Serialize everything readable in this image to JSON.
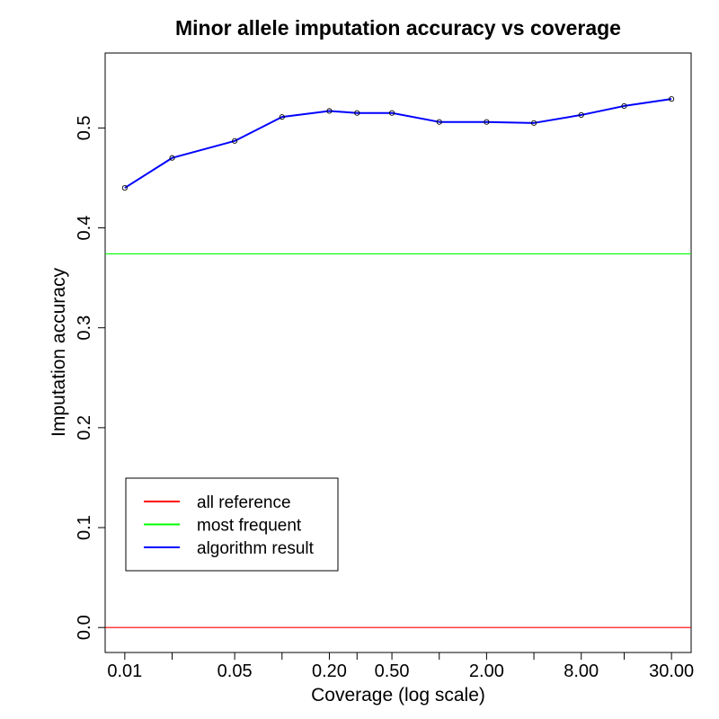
{
  "chart_data": {
    "type": "line",
    "title": "Minor allele imputation accuracy vs coverage",
    "xlabel": "Coverage (log scale)",
    "ylabel": "Imputation accuracy",
    "x_scale": "log",
    "x": [
      0.01,
      0.02,
      0.05,
      0.1,
      0.2,
      0.3,
      0.5,
      1,
      2,
      4,
      8,
      15,
      30
    ],
    "xticks": [
      0.01,
      0.02,
      0.05,
      0.1,
      0.2,
      0.3,
      0.5,
      1,
      2,
      4,
      8,
      15,
      30
    ],
    "xtick_labels": [
      "0.01",
      "",
      "0.05",
      "",
      "0.20",
      "",
      "0.50",
      "",
      "2.00",
      "",
      "8.00",
      "",
      "30.00"
    ],
    "xlim": [
      0.0075,
      40
    ],
    "ylim": [
      -0.025,
      0.575
    ],
    "yticks": [
      0.0,
      0.1,
      0.2,
      0.3,
      0.4,
      0.5
    ],
    "ytick_labels": [
      "0.0",
      "0.1",
      "0.2",
      "0.3",
      "0.4",
      "0.5"
    ],
    "grid": false,
    "legend_position": "bottom-left",
    "series": [
      {
        "name": "all reference",
        "color": "#ff0000",
        "kind": "hline",
        "value": 0.0
      },
      {
        "name": "most frequent",
        "color": "#00ff00",
        "kind": "hline",
        "value": 0.374
      },
      {
        "name": "algorithm result",
        "color": "#0000ff",
        "kind": "line",
        "values": [
          0.44,
          0.47,
          0.487,
          0.511,
          0.517,
          0.515,
          0.515,
          0.506,
          0.506,
          0.505,
          0.513,
          0.522,
          0.529
        ]
      }
    ]
  }
}
